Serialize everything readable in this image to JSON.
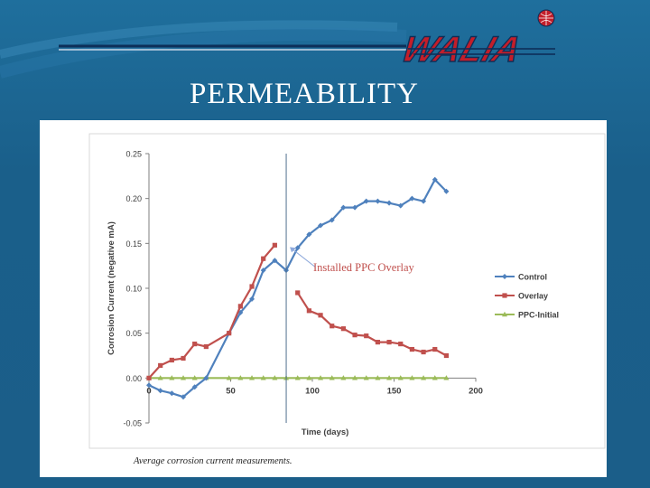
{
  "slide": {
    "title": "PERMEABILITY",
    "logo_text": "WALIA"
  },
  "colors": {
    "background": "#1b5e89",
    "control": "#4f81bd",
    "overlay": "#c0504d",
    "ppc_initial": "#9bbb59",
    "annotation": "#c0504d"
  },
  "chart_data": {
    "type": "line",
    "xlabel": "Time (days)",
    "ylabel": "Corrosion Current (negative mA)",
    "xlim": [
      0,
      200
    ],
    "ylim": [
      -0.05,
      0.25
    ],
    "xticks": [
      0,
      50,
      100,
      150,
      200
    ],
    "yticks": [
      "-0.05",
      "0.00",
      "0.05",
      "0.10",
      "0.15",
      "0.20",
      "0.25"
    ],
    "grid": false,
    "legend_position": "right",
    "caption": "Average corrosion current measurements.",
    "annotation": {
      "text": "Installed PPC Overlay",
      "x": 84
    },
    "series": [
      {
        "name": "Control",
        "color": "#4f81bd",
        "marker": "diamond",
        "x": [
          0,
          7,
          14,
          21,
          28,
          35,
          49,
          56,
          63,
          70,
          77,
          84,
          91,
          98,
          105,
          112,
          119,
          126,
          133,
          140,
          147,
          154,
          161,
          168,
          175,
          182
        ],
        "y": [
          -0.008,
          -0.014,
          -0.017,
          -0.021,
          -0.01,
          0.0,
          0.05,
          0.073,
          0.088,
          0.12,
          0.131,
          0.12,
          0.145,
          0.16,
          0.17,
          0.176,
          0.19,
          0.19,
          0.197,
          0.197,
          0.195,
          0.192,
          0.2,
          0.197,
          0.221,
          0.208
        ]
      },
      {
        "name": "Overlay",
        "color": "#c0504d",
        "marker": "square",
        "segments": [
          {
            "x": [
              0,
              7,
              14,
              21,
              28,
              35,
              49,
              56,
              63,
              70,
              77
            ],
            "y": [
              0.0,
              0.014,
              0.02,
              0.022,
              0.038,
              0.035,
              0.05,
              0.08,
              0.102,
              0.133,
              0.148
            ]
          },
          {
            "x": [
              91,
              98,
              105,
              112,
              119,
              126,
              133,
              140,
              147,
              154,
              161,
              168,
              175,
              182
            ],
            "y": [
              0.095,
              0.075,
              0.07,
              0.058,
              0.055,
              0.048,
              0.047,
              0.04,
              0.04,
              0.038,
              0.032,
              0.029,
              0.032,
              0.025
            ]
          }
        ]
      },
      {
        "name": "PPC-Initial",
        "color": "#9bbb59",
        "marker": "triangle",
        "x": [
          0,
          7,
          14,
          21,
          28,
          35,
          49,
          56,
          63,
          70,
          77,
          84,
          91,
          98,
          105,
          112,
          119,
          126,
          133,
          140,
          147,
          154,
          161,
          168,
          175,
          182
        ],
        "y": [
          0,
          0,
          0,
          0,
          0,
          0,
          0,
          0,
          0,
          0,
          0,
          0,
          0,
          0,
          0,
          0,
          0,
          0,
          0,
          0,
          0,
          0,
          0,
          0,
          0,
          0
        ]
      }
    ]
  }
}
